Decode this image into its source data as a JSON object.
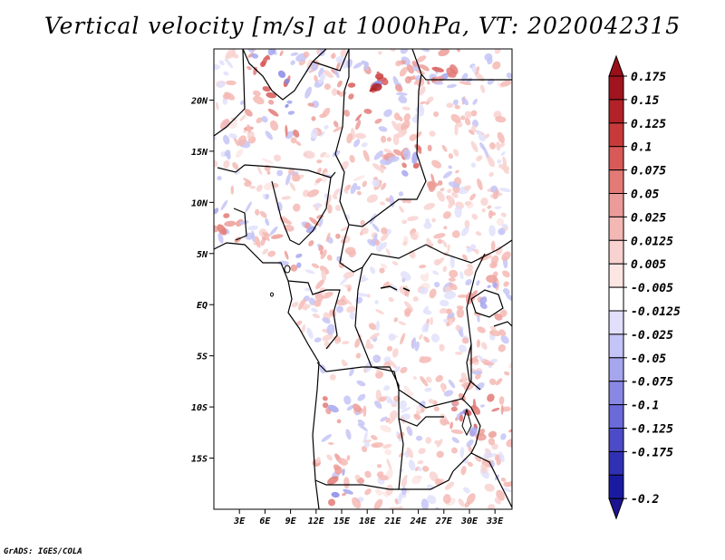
{
  "title": "Vertical velocity [m/s] at 1000hPa, VT: 2020042315",
  "footer": "GrADS: IGES/COLA",
  "map": {
    "lon_range": [
      0,
      35
    ],
    "lat_range": [
      -20,
      25
    ],
    "lat_ticks": [
      {
        "value": 20,
        "label": "20N"
      },
      {
        "value": 15,
        "label": "15N"
      },
      {
        "value": 10,
        "label": "10N"
      },
      {
        "value": 5,
        "label": "5N"
      },
      {
        "value": 0,
        "label": "EQ"
      },
      {
        "value": -5,
        "label": "5S"
      },
      {
        "value": -10,
        "label": "10S"
      },
      {
        "value": -15,
        "label": "15S"
      }
    ],
    "lon_ticks": [
      {
        "value": 3,
        "label": "3E"
      },
      {
        "value": 6,
        "label": "6E"
      },
      {
        "value": 9,
        "label": "9E"
      },
      {
        "value": 12,
        "label": "12E"
      },
      {
        "value": 15,
        "label": "15E"
      },
      {
        "value": 18,
        "label": "18E"
      },
      {
        "value": 21,
        "label": "21E"
      },
      {
        "value": 24,
        "label": "24E"
      },
      {
        "value": 27,
        "label": "27E"
      },
      {
        "value": 30,
        "label": "30E"
      },
      {
        "value": 33,
        "label": "33E"
      }
    ]
  },
  "colorbar": [
    {
      "label": "0.175",
      "color": "#a01420"
    },
    {
      "label": "0.15",
      "color": "#b22228"
    },
    {
      "label": "0.125",
      "color": "#c83a3a"
    },
    {
      "label": "0.1",
      "color": "#d85a58"
    },
    {
      "label": "0.075",
      "color": "#e27a76"
    },
    {
      "label": "0.05",
      "color": "#ec9c98"
    },
    {
      "label": "0.025",
      "color": "#f4b8b4"
    },
    {
      "label": "0.0125",
      "color": "#f8d2d0"
    },
    {
      "label": "0.005",
      "color": "#fce6e4"
    },
    {
      "label": "-0.005",
      "color": "#ffffff"
    },
    {
      "label": "-0.0125",
      "color": "#e0e0fc"
    },
    {
      "label": "-0.025",
      "color": "#c4c4f6"
    },
    {
      "label": "-0.05",
      "color": "#a6a6ee"
    },
    {
      "label": "-0.075",
      "color": "#8888e4"
    },
    {
      "label": "-0.1",
      "color": "#6a6ad8"
    },
    {
      "label": "-0.125",
      "color": "#4c4cc8"
    },
    {
      "label": "-0.175",
      "color": "#3030b4"
    },
    {
      "label": "-0.2",
      "color": "#1a1aa0"
    }
  ],
  "colorbar_overflow": {
    "top": "#9a1018",
    "bottom": "#1c1490"
  }
}
